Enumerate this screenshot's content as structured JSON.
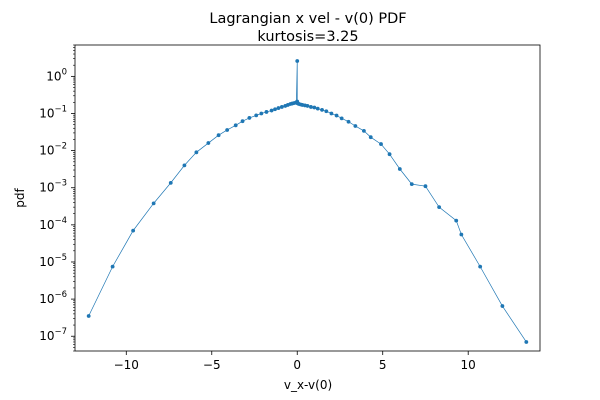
{
  "chart_data": {
    "type": "line",
    "title": "Lagrangian x vel - v(0) PDF",
    "subtitle": "kurtosis=3.25",
    "xlabel": "v_x-v(0)",
    "ylabel": "pdf",
    "xlim": [
      -13.0,
      14.2
    ],
    "ylim": [
      4e-08,
      7
    ],
    "yscale": "log",
    "grid": false,
    "x_ticks": [
      -10,
      -5,
      0,
      5,
      10
    ],
    "x_tick_labels": [
      "−10",
      "−5",
      "0",
      "5",
      "10"
    ],
    "y_ticks": [
      1e-07,
      1e-06,
      1e-05,
      0.0001,
      0.001,
      0.01,
      0.1,
      1
    ],
    "y_tick_labels": [
      {
        "base": "10",
        "exp": "−7"
      },
      {
        "base": "10",
        "exp": "−6"
      },
      {
        "base": "10",
        "exp": "−5"
      },
      {
        "base": "10",
        "exp": "−4"
      },
      {
        "base": "10",
        "exp": "−3"
      },
      {
        "base": "10",
        "exp": "−2"
      },
      {
        "base": "10",
        "exp": "−1"
      },
      {
        "base": "10",
        "exp": "0"
      }
    ],
    "series": [
      {
        "color": "#1f77b4",
        "marker": "point",
        "x": [
          -12.2,
          -10.8,
          -9.6,
          -8.4,
          -7.4,
          -6.6,
          -5.9,
          -5.2,
          -4.6,
          -4.1,
          -3.6,
          -3.2,
          -2.8,
          -2.4,
          -2.1,
          -1.8,
          -1.5,
          -1.3,
          -1.1,
          -0.9,
          -0.7,
          -0.55,
          -0.4,
          -0.3,
          -0.2,
          -0.1,
          -0.05,
          0.0,
          0.0,
          0.0,
          0.05,
          0.1,
          0.2,
          0.3,
          0.45,
          0.6,
          0.8,
          1.0,
          1.2,
          1.45,
          1.7,
          2.0,
          2.3,
          2.6,
          3.0,
          3.4,
          3.9,
          4.3,
          4.9,
          5.4,
          6.0,
          6.7,
          7.5,
          8.3,
          9.3,
          9.6,
          10.7,
          12.0,
          13.4
        ],
        "y": [
          3.5e-07,
          7.5e-06,
          7e-05,
          0.00038,
          0.00135,
          0.004,
          0.009,
          0.016,
          0.026,
          0.036,
          0.048,
          0.062,
          0.076,
          0.089,
          0.1,
          0.11,
          0.12,
          0.13,
          0.14,
          0.15,
          0.16,
          0.17,
          0.18,
          0.185,
          0.19,
          0.195,
          0.2,
          2.6,
          0.21,
          0.19,
          0.185,
          0.18,
          0.175,
          0.17,
          0.165,
          0.16,
          0.15,
          0.145,
          0.135,
          0.125,
          0.115,
          0.1,
          0.088,
          0.074,
          0.06,
          0.046,
          0.034,
          0.023,
          0.015,
          0.008,
          0.0032,
          0.00125,
          0.0011,
          0.0003,
          0.00013,
          5.5e-05,
          7.5e-06,
          6.5e-07,
          7e-08
        ]
      }
    ]
  }
}
